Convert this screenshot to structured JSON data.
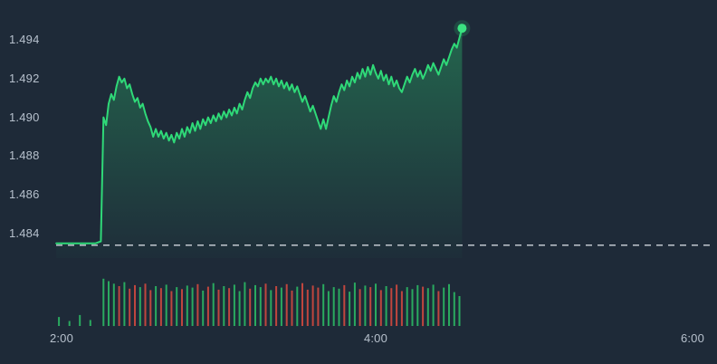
{
  "colors": {
    "background": "#1e2a38",
    "price_line": "#2fd978",
    "last_price_dot": "#3be381",
    "area_fill": "#2fd978",
    "prev_close_line": "#e3e8ee",
    "volume_up": "#2bb864",
    "volume_down": "#d1493f",
    "axis_text": "#b6c0cc"
  },
  "chart_data": {
    "type": "area",
    "title": "",
    "grid": false,
    "legend": false,
    "last_price": 1.4946,
    "previous_close": 1.4834,
    "x_axis": {
      "tick_labels": [
        "2:00",
        "4:00",
        "6:00"
      ],
      "tick_minutes": [
        120,
        240,
        360
      ]
    },
    "y_axis": {
      "min": 1.4832,
      "max": 1.4952,
      "ticks": [
        1.494,
        1.492,
        1.49,
        1.488,
        1.486,
        1.484
      ],
      "tick_labels": [
        "1.494",
        "1.492",
        "1.490",
        "1.488",
        "1.486",
        "1.484"
      ]
    },
    "series": [
      {
        "name": "price",
        "points": [
          [
            118,
            1.4835
          ],
          [
            123,
            1.4835
          ],
          [
            128,
            1.4835
          ],
          [
            133,
            1.4835
          ],
          [
            135,
            1.4836
          ],
          [
            136,
            1.49
          ],
          [
            137,
            1.4896
          ],
          [
            138,
            1.4907
          ],
          [
            139,
            1.4912
          ],
          [
            140,
            1.4909
          ],
          [
            141,
            1.4916
          ],
          [
            142,
            1.4921
          ],
          [
            143,
            1.4918
          ],
          [
            144,
            1.492
          ],
          [
            145,
            1.4915
          ],
          [
            146,
            1.4917
          ],
          [
            147,
            1.4912
          ],
          [
            148,
            1.4908
          ],
          [
            149,
            1.491
          ],
          [
            150,
            1.4905
          ],
          [
            151,
            1.4907
          ],
          [
            152,
            1.4902
          ],
          [
            153,
            1.4898
          ],
          [
            154,
            1.4895
          ],
          [
            155,
            1.489
          ],
          [
            156,
            1.4894
          ],
          [
            157,
            1.489
          ],
          [
            158,
            1.4893
          ],
          [
            159,
            1.4889
          ],
          [
            160,
            1.4892
          ],
          [
            161,
            1.4888
          ],
          [
            162,
            1.4891
          ],
          [
            163,
            1.4887
          ],
          [
            164,
            1.4892
          ],
          [
            165,
            1.4889
          ],
          [
            166,
            1.4894
          ],
          [
            167,
            1.489
          ],
          [
            168,
            1.4895
          ],
          [
            169,
            1.4892
          ],
          [
            170,
            1.4897
          ],
          [
            171,
            1.4893
          ],
          [
            172,
            1.4898
          ],
          [
            173,
            1.4894
          ],
          [
            174,
            1.4899
          ],
          [
            175,
            1.4896
          ],
          [
            176,
            1.49
          ],
          [
            177,
            1.4897
          ],
          [
            178,
            1.4901
          ],
          [
            179,
            1.4898
          ],
          [
            180,
            1.4902
          ],
          [
            181,
            1.4899
          ],
          [
            182,
            1.4903
          ],
          [
            183,
            1.49
          ],
          [
            184,
            1.4904
          ],
          [
            185,
            1.4901
          ],
          [
            186,
            1.4905
          ],
          [
            187,
            1.4902
          ],
          [
            188,
            1.4907
          ],
          [
            189,
            1.4904
          ],
          [
            190,
            1.4909
          ],
          [
            191,
            1.4913
          ],
          [
            192,
            1.491
          ],
          [
            193,
            1.4915
          ],
          [
            194,
            1.4918
          ],
          [
            195,
            1.4916
          ],
          [
            196,
            1.492
          ],
          [
            197,
            1.4917
          ],
          [
            198,
            1.492
          ],
          [
            199,
            1.4918
          ],
          [
            200,
            1.4921
          ],
          [
            201,
            1.4917
          ],
          [
            202,
            1.492
          ],
          [
            203,
            1.4916
          ],
          [
            204,
            1.4919
          ],
          [
            205,
            1.4915
          ],
          [
            206,
            1.4918
          ],
          [
            207,
            1.4914
          ],
          [
            208,
            1.4917
          ],
          [
            209,
            1.4913
          ],
          [
            210,
            1.4916
          ],
          [
            211,
            1.4912
          ],
          [
            212,
            1.4908
          ],
          [
            213,
            1.4911
          ],
          [
            214,
            1.4907
          ],
          [
            215,
            1.4903
          ],
          [
            216,
            1.4906
          ],
          [
            217,
            1.4902
          ],
          [
            218,
            1.4898
          ],
          [
            219,
            1.4894
          ],
          [
            220,
            1.4899
          ],
          [
            221,
            1.4894
          ],
          [
            222,
            1.49
          ],
          [
            223,
            1.4906
          ],
          [
            224,
            1.4911
          ],
          [
            225,
            1.4908
          ],
          [
            226,
            1.4913
          ],
          [
            227,
            1.4917
          ],
          [
            228,
            1.4914
          ],
          [
            229,
            1.4919
          ],
          [
            230,
            1.4916
          ],
          [
            231,
            1.4921
          ],
          [
            232,
            1.4918
          ],
          [
            233,
            1.4923
          ],
          [
            234,
            1.492
          ],
          [
            235,
            1.4925
          ],
          [
            236,
            1.4921
          ],
          [
            237,
            1.4926
          ],
          [
            238,
            1.4922
          ],
          [
            239,
            1.4927
          ],
          [
            240,
            1.4923
          ],
          [
            241,
            1.492
          ],
          [
            242,
            1.4924
          ],
          [
            243,
            1.4919
          ],
          [
            244,
            1.4922
          ],
          [
            245,
            1.4917
          ],
          [
            246,
            1.4921
          ],
          [
            247,
            1.4916
          ],
          [
            248,
            1.4919
          ],
          [
            249,
            1.4915
          ],
          [
            250,
            1.4913
          ],
          [
            251,
            1.4917
          ],
          [
            252,
            1.4921
          ],
          [
            253,
            1.4918
          ],
          [
            254,
            1.4922
          ],
          [
            255,
            1.4925
          ],
          [
            256,
            1.4921
          ],
          [
            257,
            1.4924
          ],
          [
            258,
            1.492
          ],
          [
            259,
            1.4923
          ],
          [
            260,
            1.4927
          ],
          [
            261,
            1.4924
          ],
          [
            262,
            1.4928
          ],
          [
            263,
            1.4925
          ],
          [
            264,
            1.4922
          ],
          [
            265,
            1.4926
          ],
          [
            266,
            1.493
          ],
          [
            267,
            1.4927
          ],
          [
            268,
            1.4931
          ],
          [
            269,
            1.4935
          ],
          [
            270,
            1.4938
          ],
          [
            271,
            1.4936
          ],
          [
            272,
            1.4941
          ],
          [
            273,
            1.4946
          ]
        ]
      }
    ],
    "volume": [
      [
        119,
        0.18,
        "u"
      ],
      [
        123,
        0.1,
        "u"
      ],
      [
        127,
        0.22,
        "u"
      ],
      [
        131,
        0.12,
        "u"
      ],
      [
        136,
        0.95,
        "u"
      ],
      [
        138,
        0.9,
        "u"
      ],
      [
        140,
        0.85,
        "u"
      ],
      [
        142,
        0.8,
        "d"
      ],
      [
        144,
        0.88,
        "u"
      ],
      [
        146,
        0.75,
        "d"
      ],
      [
        148,
        0.82,
        "d"
      ],
      [
        150,
        0.78,
        "u"
      ],
      [
        152,
        0.85,
        "d"
      ],
      [
        154,
        0.72,
        "d"
      ],
      [
        156,
        0.8,
        "u"
      ],
      [
        158,
        0.76,
        "d"
      ],
      [
        160,
        0.83,
        "u"
      ],
      [
        162,
        0.7,
        "d"
      ],
      [
        164,
        0.78,
        "u"
      ],
      [
        166,
        0.74,
        "d"
      ],
      [
        168,
        0.81,
        "u"
      ],
      [
        170,
        0.77,
        "u"
      ],
      [
        172,
        0.84,
        "d"
      ],
      [
        174,
        0.71,
        "u"
      ],
      [
        176,
        0.79,
        "d"
      ],
      [
        178,
        0.86,
        "u"
      ],
      [
        180,
        0.73,
        "d"
      ],
      [
        182,
        0.8,
        "u"
      ],
      [
        184,
        0.76,
        "d"
      ],
      [
        186,
        0.83,
        "u"
      ],
      [
        188,
        0.7,
        "u"
      ],
      [
        190,
        0.88,
        "u"
      ],
      [
        192,
        0.75,
        "d"
      ],
      [
        194,
        0.82,
        "u"
      ],
      [
        196,
        0.78,
        "u"
      ],
      [
        198,
        0.85,
        "d"
      ],
      [
        200,
        0.72,
        "u"
      ],
      [
        202,
        0.8,
        "d"
      ],
      [
        204,
        0.77,
        "u"
      ],
      [
        206,
        0.84,
        "d"
      ],
      [
        208,
        0.71,
        "d"
      ],
      [
        210,
        0.79,
        "u"
      ],
      [
        212,
        0.86,
        "d"
      ],
      [
        214,
        0.73,
        "d"
      ],
      [
        216,
        0.81,
        "d"
      ],
      [
        218,
        0.77,
        "d"
      ],
      [
        220,
        0.84,
        "u"
      ],
      [
        222,
        0.7,
        "u"
      ],
      [
        224,
        0.78,
        "u"
      ],
      [
        226,
        0.75,
        "u"
      ],
      [
        228,
        0.82,
        "d"
      ],
      [
        230,
        0.69,
        "u"
      ],
      [
        232,
        0.87,
        "u"
      ],
      [
        234,
        0.74,
        "d"
      ],
      [
        236,
        0.81,
        "u"
      ],
      [
        238,
        0.78,
        "d"
      ],
      [
        240,
        0.85,
        "u"
      ],
      [
        242,
        0.72,
        "d"
      ],
      [
        244,
        0.8,
        "u"
      ],
      [
        246,
        0.76,
        "d"
      ],
      [
        248,
        0.83,
        "d"
      ],
      [
        250,
        0.7,
        "d"
      ],
      [
        252,
        0.78,
        "u"
      ],
      [
        254,
        0.74,
        "u"
      ],
      [
        256,
        0.82,
        "u"
      ],
      [
        258,
        0.79,
        "d"
      ],
      [
        260,
        0.76,
        "u"
      ],
      [
        262,
        0.83,
        "u"
      ],
      [
        264,
        0.7,
        "d"
      ],
      [
        266,
        0.77,
        "u"
      ],
      [
        268,
        0.84,
        "u"
      ],
      [
        270,
        0.68,
        "u"
      ],
      [
        272,
        0.6,
        "u"
      ]
    ]
  }
}
